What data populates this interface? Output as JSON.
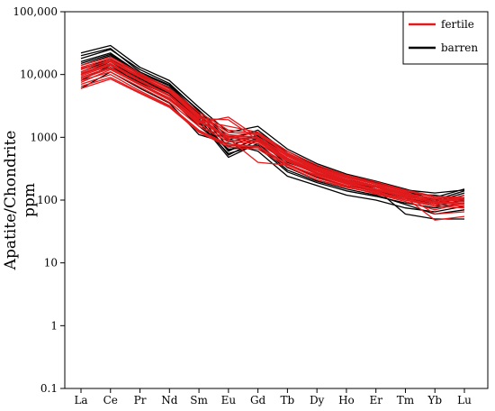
{
  "chart_data": {
    "type": "line",
    "title": "",
    "ylabel": [
      "Apatite/Chondrite",
      "ppm"
    ],
    "xlabel": "",
    "y_scale": "log",
    "ylim": [
      0.1,
      100000
    ],
    "y_ticks": [
      0.1,
      1,
      10,
      100,
      1000,
      10000,
      100000
    ],
    "y_tick_labels": [
      "0.1",
      "1",
      "10",
      "100",
      "1000",
      "10,000",
      "100,000"
    ],
    "categories": [
      "La",
      "Ce",
      "Pr",
      "Nd",
      "Sm",
      "Eu",
      "Gd",
      "Tb",
      "Dy",
      "Ho",
      "Er",
      "Tm",
      "Yb",
      "Lu"
    ],
    "legend_position": "top-right",
    "groups": [
      {
        "name": "fertile",
        "color": "#e31a1c",
        "series": [
          {
            "values": [
              12000,
              17000,
              9500,
              5500,
              2200,
              1100,
              1000,
              500,
              310,
              220,
              170,
              130,
              105,
              100
            ]
          },
          {
            "values": [
              9000,
              13000,
              7000,
              4000,
              1600,
              900,
              850,
              430,
              270,
              190,
              150,
              115,
              95,
              90
            ]
          },
          {
            "values": [
              7000,
              10000,
              5500,
              3200,
              1300,
              780,
              720,
              380,
              240,
              170,
              135,
              105,
              85,
              80
            ]
          },
          {
            "values": [
              14000,
              19000,
              10500,
              6000,
              2500,
              1300,
              1150,
              560,
              340,
              240,
              185,
              140,
              110,
              105
            ]
          },
          {
            "values": [
              6000,
              8500,
              5000,
              3000,
              1200,
              700,
              650,
              340,
              210,
              160,
              130,
              100,
              80,
              75
            ]
          },
          {
            "values": [
              10500,
              15000,
              8200,
              4700,
              1900,
              1000,
              950,
              470,
              290,
              205,
              160,
              120,
              100,
              95
            ]
          },
          {
            "values": [
              8000,
              11000,
              6300,
              3600,
              1500,
              850,
              800,
              410,
              260,
              185,
              145,
              110,
              90,
              85
            ]
          },
          {
            "values": [
              11000,
              16000,
              9000,
              5200,
              2000,
              1900,
              900,
              450,
              290,
              200,
              160,
              110,
              48,
              55
            ]
          },
          {
            "values": [
              7500,
              12000,
              6800,
              3900,
              1700,
              2100,
              1000,
              520,
              320,
              230,
              180,
              120,
              60,
              65
            ]
          },
          {
            "values": [
              9500,
              14000,
              7800,
              4500,
              1800,
              950,
              400,
              360,
              250,
              180,
              140,
              100,
              85,
              120
            ]
          },
          {
            "values": [
              13000,
              18000,
              10000,
              5800,
              2300,
              1200,
              1100,
              540,
              330,
              235,
              180,
              135,
              90,
              110
            ]
          },
          {
            "values": [
              6500,
              9000,
              5200,
              3100,
              1250,
              740,
              690,
              360,
              225,
              165,
              125,
              95,
              70,
              90
            ]
          },
          {
            "values": [
              8500,
              12500,
              7200,
              4200,
              1750,
              1050,
              1000,
              500,
              300,
              210,
              165,
              125,
              100,
              100
            ]
          },
          {
            "values": [
              10000,
              14500,
              8000,
              4600,
              1850,
              1500,
              1200,
              600,
              360,
              250,
              195,
              145,
              115,
              110
            ]
          },
          {
            "values": [
              12500,
              16500,
              9200,
              5300,
              2100,
              980,
              880,
              440,
              275,
              195,
              150,
              115,
              95,
              85
            ]
          }
        ]
      },
      {
        "name": "barren",
        "color": "#000000",
        "series": [
          {
            "values": [
              22000,
              29000,
              13000,
              8000,
              3000,
              1200,
              1500,
              650,
              380,
              260,
              200,
              150,
              110,
              150
            ]
          },
          {
            "values": [
              18000,
              25000,
              12000,
              7200,
              2600,
              900,
              1300,
              560,
              330,
              230,
              180,
              140,
              100,
              140
            ]
          },
          {
            "values": [
              16000,
              22000,
              10500,
              6600,
              2400,
              700,
              1100,
              500,
              300,
              210,
              170,
              130,
              95,
              130
            ]
          },
          {
            "values": [
              14000,
              20000,
              9800,
              6000,
              2200,
              600,
              1000,
              430,
              260,
              190,
              160,
              120,
              90,
              120
            ]
          },
          {
            "values": [
              12000,
              18000,
              9000,
              5500,
              2000,
              520,
              900,
              370,
              230,
              170,
              140,
              110,
              85,
              110
            ]
          },
          {
            "values": [
              10000,
              16000,
              8200,
              5000,
              1800,
              480,
              800,
              330,
              210,
              160,
              130,
              100,
              80,
              100
            ]
          },
          {
            "values": [
              8000,
              14000,
              7000,
              4200,
              1500,
              650,
              700,
              280,
              190,
              140,
              115,
              90,
              75,
              90
            ]
          },
          {
            "values": [
              6000,
              11000,
              6000,
              3500,
              1100,
              800,
              600,
              240,
              170,
              120,
              100,
              75,
              65,
              80
            ]
          },
          {
            "values": [
              20000,
              26000,
              11000,
              6800,
              2700,
              1000,
              1200,
              600,
              350,
              240,
              190,
              145,
              130,
              145
            ]
          },
          {
            "values": [
              15000,
              21000,
              10000,
              6200,
              2300,
              850,
              1050,
              450,
              290,
              200,
              150,
              60,
              50,
              50
            ]
          },
          {
            "values": [
              9000,
              13000,
              7500,
              4600,
              1700,
              550,
              750,
              300,
              200,
              150,
              120,
              85,
              60,
              70
            ]
          },
          {
            "values": [
              11000,
              17000,
              8600,
              5200,
              1900,
              620,
              950,
              400,
              270,
              200,
              165,
              125,
              120,
              100
            ]
          }
        ]
      }
    ]
  }
}
